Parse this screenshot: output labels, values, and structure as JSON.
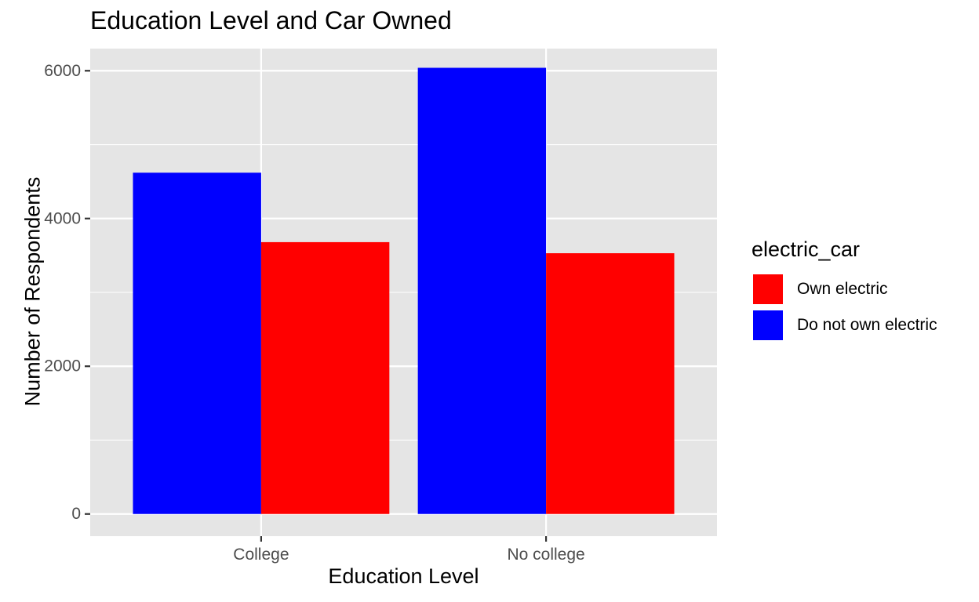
{
  "chart_data": {
    "type": "bar",
    "title": "Education Level and Car Owned",
    "xlabel": "Education Level",
    "ylabel": "Number of Respondents",
    "categories": [
      "College",
      "No college"
    ],
    "series": [
      {
        "name": "Do not own electric",
        "color": "#0000FF",
        "values": [
          4620,
          6040
        ]
      },
      {
        "name": "Own electric",
        "color": "#FF0000",
        "values": [
          3680,
          3530
        ]
      }
    ],
    "yticks": [
      0,
      2000,
      4000,
      6000
    ],
    "ylim": [
      -300,
      6300
    ],
    "grid": true,
    "panel_background": "#E5E5E5",
    "legend": {
      "title": "electric_car",
      "position": "right",
      "items": [
        {
          "label": "Own electric",
          "color": "#FF0000"
        },
        {
          "label": "Do not own electric",
          "color": "#0000FF"
        }
      ]
    }
  }
}
